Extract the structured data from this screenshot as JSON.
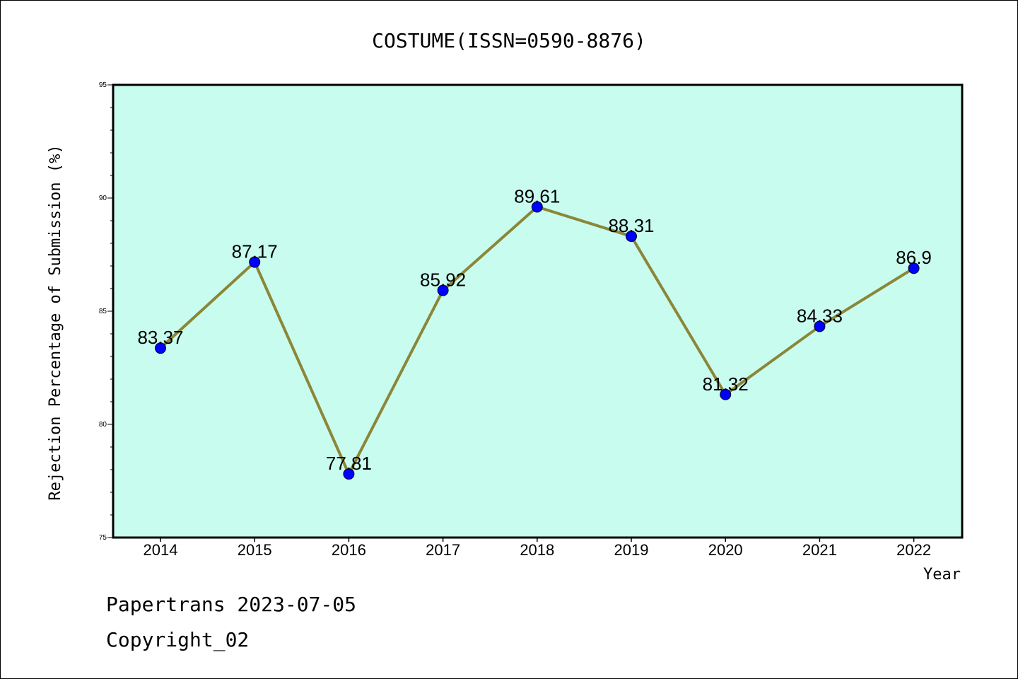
{
  "chart_data": {
    "type": "line",
    "title": "COSTUME(ISSN=0590-8876)",
    "xlabel": "Year",
    "ylabel": "Rejection Percentage of Submission (%)",
    "x": [
      "2014",
      "2015",
      "2016",
      "2017",
      "2018",
      "2019",
      "2020",
      "2021",
      "2022"
    ],
    "series": [
      {
        "values": [
          83.37,
          87.17,
          77.81,
          85.92,
          89.61,
          88.31,
          81.32,
          84.33,
          86.9
        ],
        "labels": [
          "83.37",
          "87.17",
          "77.81",
          "85.92",
          "89.61",
          "88.31",
          "81.32",
          "84.33",
          "86.9"
        ]
      }
    ],
    "ylim": [
      75,
      95
    ],
    "yticks": [
      "75",
      "80",
      "85",
      "90",
      "95"
    ],
    "grid": false,
    "colors": {
      "plot_background": "#c8fcee",
      "line": "#8b8638",
      "marker": "#0000ff"
    }
  },
  "footer": {
    "line1": "Papertrans 2023-07-05",
    "line2": "Copyright_02"
  }
}
